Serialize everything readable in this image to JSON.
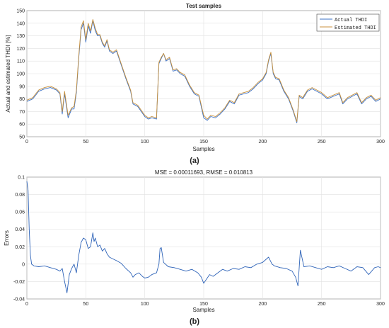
{
  "chart_data": [
    {
      "type": "line",
      "title": "Test samples",
      "xlabel": "Samples",
      "ylabel": "Actual and estimated THDI [%]",
      "xlim": [
        0,
        300
      ],
      "ylim": [
        50,
        150
      ],
      "xticks": [
        0,
        50,
        100,
        150,
        200,
        250,
        300
      ],
      "yticks": [
        50,
        60,
        70,
        80,
        90,
        100,
        110,
        120,
        130,
        140,
        150
      ],
      "grid": true,
      "legend_position": "top-right",
      "panel_label": "(a)",
      "x": [
        0,
        5,
        10,
        15,
        20,
        25,
        28,
        30,
        32,
        35,
        38,
        40,
        42,
        44,
        46,
        48,
        50,
        52,
        54,
        56,
        58,
        60,
        62,
        64,
        66,
        68,
        70,
        73,
        76,
        80,
        84,
        88,
        90,
        94,
        97,
        100,
        103,
        106,
        110,
        112,
        114,
        116,
        118,
        121,
        124,
        127,
        130,
        134,
        138,
        142,
        146,
        150,
        153,
        156,
        160,
        164,
        168,
        172,
        176,
        180,
        184,
        188,
        192,
        196,
        200,
        203,
        205,
        207,
        209,
        211,
        214,
        218,
        222,
        226,
        229,
        231,
        234,
        238,
        242,
        246,
        250,
        255,
        260,
        265,
        268,
        272,
        276,
        280,
        284,
        288,
        292,
        296,
        300
      ],
      "series": [
        {
          "name": "Actual THDI",
          "color": "#3a6fc4",
          "values": [
            78,
            80,
            86,
            88,
            89,
            87,
            84,
            68,
            84,
            65,
            72,
            72,
            85,
            112,
            135,
            140,
            125,
            138,
            132,
            142,
            134,
            130,
            130,
            124,
            121,
            126,
            118,
            116,
            118,
            107,
            96,
            86,
            76,
            74,
            70,
            66,
            64,
            65,
            64,
            108,
            112,
            116,
            110,
            112,
            102,
            103,
            100,
            98,
            90,
            84,
            82,
            65,
            63,
            66,
            65,
            68,
            72,
            78,
            76,
            83,
            84,
            85,
            88,
            92,
            95,
            100,
            110,
            116,
            100,
            96,
            95,
            86,
            80,
            70,
            61,
            82,
            80,
            86,
            88,
            86,
            84,
            80,
            82,
            84,
            76,
            80,
            82,
            84,
            76,
            80,
            82,
            78,
            80
          ]
        },
        {
          "name": "Estimated THDI",
          "color": "#c8913c",
          "values": [
            79,
            81,
            87,
            89,
            90,
            88,
            85,
            70,
            86,
            67,
            73,
            74,
            87,
            114,
            137,
            142,
            127,
            140,
            134,
            143,
            136,
            131,
            131,
            125,
            122,
            127,
            119,
            117,
            119,
            108,
            97,
            87,
            77,
            75,
            71,
            67,
            65,
            66,
            65,
            109,
            113,
            116,
            111,
            113,
            103,
            104,
            101,
            99,
            91,
            85,
            83,
            67,
            64,
            67,
            66,
            69,
            73,
            79,
            77,
            84,
            85,
            86,
            89,
            93,
            96,
            101,
            111,
            117,
            101,
            97,
            96,
            87,
            81,
            71,
            62,
            83,
            81,
            87,
            89,
            87,
            85,
            81,
            83,
            85,
            77,
            81,
            83,
            85,
            77,
            81,
            83,
            79,
            81
          ]
        }
      ]
    },
    {
      "type": "line",
      "title": "MSE = 0.00011693, RMSE = 0.010813",
      "xlabel": "Samples",
      "ylabel": "Errors",
      "xlim": [
        0,
        300
      ],
      "ylim": [
        -0.04,
        0.1
      ],
      "xticks": [
        0,
        50,
        100,
        150,
        200,
        250,
        300
      ],
      "yticks": [
        -0.04,
        -0.02,
        0,
        0.02,
        0.04,
        0.06,
        0.08,
        0.1
      ],
      "ytick_labels": [
        "-0.04",
        "-0.02",
        "0",
        "0.02",
        "0.04",
        "0.06",
        "0.08",
        "0.1"
      ],
      "grid": true,
      "panel_label": "(b)",
      "x": [
        0,
        1,
        2,
        3,
        4,
        6,
        10,
        15,
        20,
        25,
        28,
        30,
        32,
        34,
        36,
        38,
        40,
        42,
        44,
        46,
        48,
        50,
        52,
        54,
        56,
        57,
        58,
        60,
        62,
        64,
        66,
        68,
        70,
        73,
        76,
        80,
        84,
        88,
        90,
        92,
        95,
        98,
        100,
        103,
        106,
        110,
        112,
        113,
        114,
        116,
        120,
        125,
        130,
        135,
        140,
        145,
        148,
        150,
        152,
        155,
        158,
        162,
        166,
        170,
        175,
        180,
        185,
        190,
        195,
        200,
        205,
        208,
        210,
        215,
        220,
        225,
        228,
        230,
        232,
        235,
        240,
        245,
        250,
        255,
        260,
        265,
        270,
        275,
        280,
        285,
        290,
        295,
        298,
        300
      ],
      "series": [
        {
          "name": "",
          "color": "#2e63b8",
          "values": [
            0.095,
            0.085,
            0.04,
            0.01,
            0.0,
            -0.002,
            -0.003,
            -0.002,
            -0.004,
            -0.006,
            -0.008,
            -0.005,
            -0.02,
            -0.033,
            -0.012,
            -0.005,
            0.0,
            -0.01,
            0.01,
            0.025,
            0.03,
            0.028,
            0.018,
            0.02,
            0.036,
            0.026,
            0.03,
            0.02,
            0.022,
            0.015,
            0.018,
            0.012,
            0.008,
            0.006,
            0.004,
            0.001,
            -0.005,
            -0.01,
            -0.015,
            -0.012,
            -0.01,
            -0.014,
            -0.016,
            -0.015,
            -0.012,
            -0.01,
            0.0,
            0.018,
            0.019,
            0.002,
            -0.003,
            -0.004,
            -0.006,
            -0.008,
            -0.006,
            -0.01,
            -0.015,
            -0.022,
            -0.018,
            -0.012,
            -0.014,
            -0.01,
            -0.006,
            -0.008,
            -0.005,
            -0.006,
            -0.003,
            -0.004,
            0.0,
            0.002,
            0.008,
            0.0,
            -0.002,
            -0.004,
            -0.005,
            -0.008,
            -0.015,
            -0.025,
            0.016,
            -0.003,
            -0.002,
            -0.004,
            -0.006,
            -0.003,
            -0.004,
            -0.002,
            -0.005,
            -0.008,
            -0.003,
            -0.004,
            -0.012,
            -0.004,
            -0.003,
            -0.004
          ]
        }
      ]
    }
  ]
}
